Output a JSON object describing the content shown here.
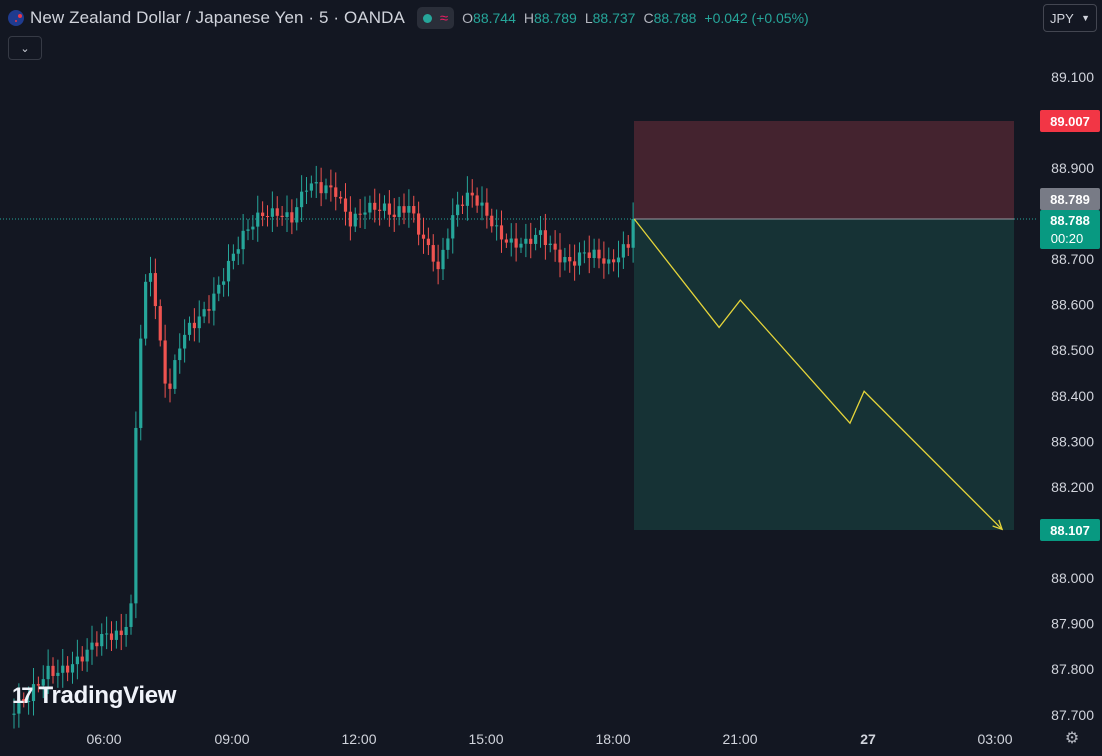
{
  "header": {
    "title": "New Zealand Dollar / Japanese Yen · 5 · OANDA",
    "flag_icon": "nz-flag-icon",
    "wave_symbol": "≈",
    "ohlc": {
      "o_label": "O",
      "o_value": "88.744",
      "h_label": "H",
      "h_value": "88.789",
      "l_label": "L",
      "l_value": "88.737",
      "c_label": "C",
      "c_value": "88.788",
      "change": "+0.042 (+0.05%)"
    }
  },
  "currency_select": {
    "value": "JPY"
  },
  "collapse_icon": "chevron-down-icon",
  "logo": {
    "mark": "17",
    "text": "TradingView"
  },
  "price_labels": {
    "stop": "89.007",
    "ask": "88.789",
    "last": "88.788",
    "countdown": "00:20",
    "target": "88.107"
  },
  "colors": {
    "up": "#26a69a",
    "down": "#ef5350",
    "background": "#131722",
    "stop_zone": "#44232f",
    "target_zone": "#163235",
    "projection": "#e5d53a"
  },
  "chart_data": {
    "type": "candlestick",
    "symbol": "NZDJPY",
    "interval_minutes": 5,
    "y_ticks": [
      "89.100",
      "88.900",
      "88.800",
      "88.700",
      "88.600",
      "88.500",
      "88.400",
      "88.300",
      "88.200",
      "88.000",
      "87.900",
      "87.800",
      "87.700"
    ],
    "x_ticks": [
      "06:00",
      "09:00",
      "12:00",
      "15:00",
      "18:00",
      "21:00",
      "27",
      "03:00"
    ],
    "ylim": [
      87.67,
      89.22
    ],
    "path_closes": [
      [
        0,
        87.7
      ],
      [
        4,
        87.72
      ],
      [
        8,
        87.8
      ],
      [
        12,
        87.82
      ],
      [
        16,
        87.83
      ],
      [
        20,
        87.86
      ],
      [
        23,
        87.88
      ],
      [
        25,
        87.95
      ],
      [
        26,
        88.35
      ],
      [
        27,
        88.55
      ],
      [
        28,
        88.65
      ],
      [
        29,
        88.68
      ],
      [
        30,
        88.6
      ],
      [
        31,
        88.5
      ],
      [
        32,
        88.42
      ],
      [
        33,
        88.4
      ],
      [
        35,
        88.5
      ],
      [
        37,
        88.55
      ],
      [
        40,
        88.6
      ],
      [
        43,
        88.65
      ],
      [
        46,
        88.7
      ],
      [
        49,
        88.75
      ],
      [
        52,
        88.8
      ],
      [
        55,
        88.82
      ],
      [
        58,
        88.8
      ],
      [
        61,
        88.85
      ],
      [
        64,
        88.84
      ],
      [
        67,
        88.85
      ],
      [
        70,
        88.8
      ],
      [
        73,
        88.82
      ],
      [
        76,
        88.8
      ],
      [
        79,
        88.78
      ],
      [
        82,
        88.82
      ],
      [
        85,
        88.76
      ],
      [
        87,
        88.72
      ],
      [
        88,
        88.68
      ],
      [
        90,
        88.75
      ],
      [
        92,
        88.8
      ],
      [
        95,
        88.83
      ],
      [
        98,
        88.81
      ],
      [
        100,
        88.78
      ],
      [
        103,
        88.74
      ],
      [
        106,
        88.72
      ],
      [
        109,
        88.74
      ],
      [
        112,
        88.72
      ],
      [
        115,
        88.71
      ],
      [
        118,
        88.72
      ],
      [
        121,
        88.69
      ],
      [
        123,
        88.67
      ],
      [
        125,
        88.7
      ],
      [
        127,
        88.74
      ],
      [
        128,
        88.788
      ]
    ],
    "position": {
      "type": "short",
      "entry": 88.788,
      "stop": 89.007,
      "target": 88.107,
      "start_time": "18:25",
      "end_time": "03:10"
    },
    "projection": [
      [
        "18:30",
        88.788
      ],
      [
        "20:30",
        88.55
      ],
      [
        "21:00",
        88.61
      ],
      [
        "23:35",
        88.34
      ],
      [
        "23:55",
        88.41
      ],
      [
        "03:10",
        88.107
      ]
    ]
  }
}
